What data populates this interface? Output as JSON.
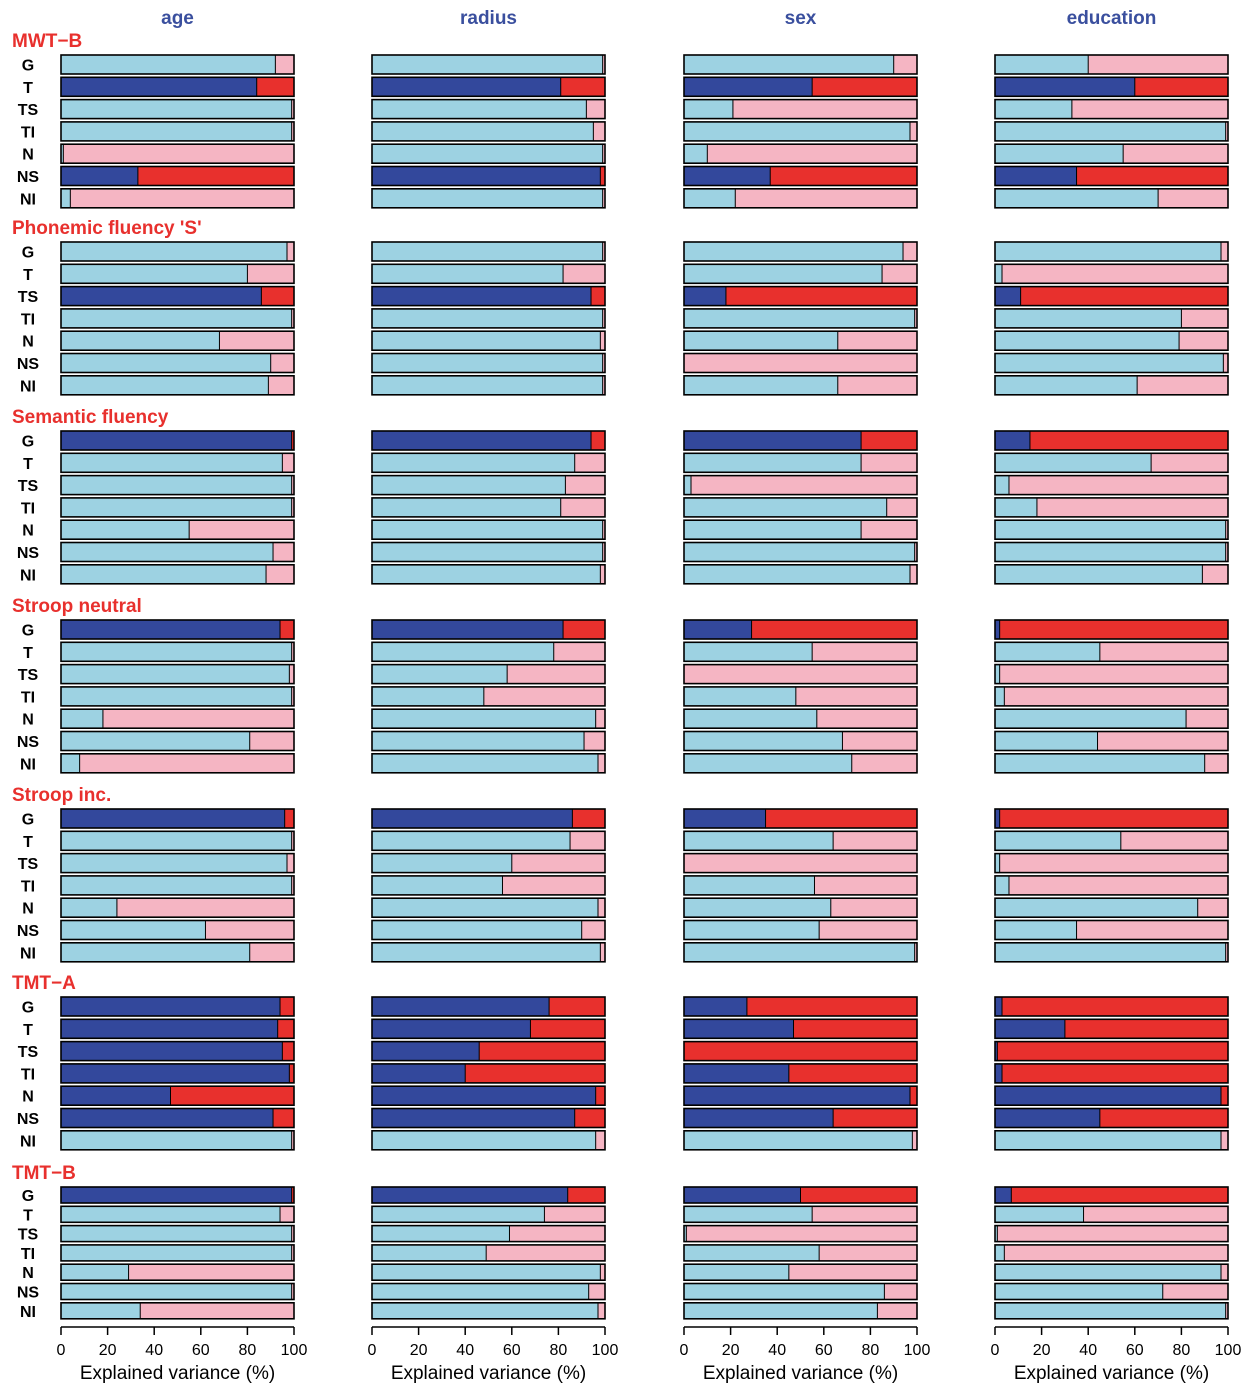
{
  "figure": {
    "columns": [
      "age",
      "radius",
      "sex",
      "education"
    ],
    "row_labels": [
      "G",
      "T",
      "TS",
      "TI",
      "N",
      "NS",
      "NI"
    ],
    "colors": {
      "column_title": "#3a4f9e",
      "group_title": "#e8302d",
      "significant": "#33489c",
      "significant_rest": "#e8302d",
      "not_significant": "#9dd2e2",
      "not_significant_rest": "#f5b5c3",
      "bar_border": "#000000"
    }
  },
  "chart_data": {
    "type": "bar",
    "orientation": "horizontal",
    "stacked": true,
    "xlabel": "Explained variance (%)",
    "xlim": [
      0,
      100
    ],
    "xticks": [
      0,
      20,
      40,
      60,
      80,
      100
    ],
    "panels": [
      {
        "group": "MWT−B",
        "values": {
          "age": [
            92,
            84,
            99,
            99,
            1,
            33,
            4
          ],
          "radius": [
            99,
            81,
            92,
            95,
            99,
            98,
            99
          ],
          "sex": [
            90,
            55,
            21,
            97,
            10,
            37,
            22
          ],
          "education": [
            40,
            60,
            33,
            99,
            55,
            35,
            70
          ]
        },
        "significant": {
          "age": [
            false,
            true,
            false,
            false,
            false,
            true,
            false
          ],
          "radius": [
            false,
            true,
            false,
            false,
            false,
            true,
            false
          ],
          "sex": [
            false,
            true,
            false,
            false,
            false,
            true,
            false
          ],
          "education": [
            false,
            true,
            false,
            false,
            false,
            true,
            false
          ]
        }
      },
      {
        "group": "Phonemic fluency 'S'",
        "values": {
          "age": [
            97,
            80,
            86,
            99,
            68,
            90,
            89
          ],
          "radius": [
            99,
            82,
            94,
            99,
            98,
            99,
            99
          ],
          "sex": [
            94,
            85,
            18,
            99,
            66,
            0,
            66
          ],
          "education": [
            97,
            3,
            11,
            80,
            79,
            98,
            61
          ]
        },
        "significant": {
          "age": [
            false,
            false,
            true,
            false,
            false,
            false,
            false
          ],
          "radius": [
            false,
            false,
            true,
            false,
            false,
            false,
            false
          ],
          "sex": [
            false,
            false,
            true,
            false,
            false,
            false,
            false
          ],
          "education": [
            false,
            false,
            true,
            false,
            false,
            false,
            false
          ]
        }
      },
      {
        "group": "Semantic fluency",
        "values": {
          "age": [
            99,
            95,
            99,
            99,
            55,
            91,
            88
          ],
          "radius": [
            94,
            87,
            83,
            81,
            99,
            99,
            98
          ],
          "sex": [
            76,
            76,
            3,
            87,
            76,
            99,
            97
          ],
          "education": [
            15,
            67,
            6,
            18,
            99,
            99,
            89
          ]
        },
        "significant": {
          "age": [
            true,
            false,
            false,
            false,
            false,
            false,
            false
          ],
          "radius": [
            true,
            false,
            false,
            false,
            false,
            false,
            false
          ],
          "sex": [
            true,
            false,
            false,
            false,
            false,
            false,
            false
          ],
          "education": [
            true,
            false,
            false,
            false,
            false,
            false,
            false
          ]
        }
      },
      {
        "group": "Stroop neutral",
        "values": {
          "age": [
            94,
            99,
            98,
            99,
            18,
            81,
            8
          ],
          "radius": [
            82,
            78,
            58,
            48,
            96,
            91,
            97
          ],
          "sex": [
            29,
            55,
            0,
            48,
            57,
            68,
            72
          ],
          "education": [
            2,
            45,
            2,
            4,
            82,
            44,
            90
          ]
        },
        "significant": {
          "age": [
            true,
            false,
            false,
            false,
            false,
            false,
            false
          ],
          "radius": [
            true,
            false,
            false,
            false,
            false,
            false,
            false
          ],
          "sex": [
            true,
            false,
            false,
            false,
            false,
            false,
            false
          ],
          "education": [
            true,
            false,
            false,
            false,
            false,
            false,
            false
          ]
        }
      },
      {
        "group": "Stroop inc.",
        "values": {
          "age": [
            96,
            99,
            97,
            99,
            24,
            62,
            81
          ],
          "radius": [
            86,
            85,
            60,
            56,
            97,
            90,
            98
          ],
          "sex": [
            35,
            64,
            0,
            56,
            63,
            58,
            99
          ],
          "education": [
            2,
            54,
            2,
            6,
            87,
            35,
            99
          ]
        },
        "significant": {
          "age": [
            true,
            false,
            false,
            false,
            false,
            false,
            false
          ],
          "radius": [
            true,
            false,
            false,
            false,
            false,
            false,
            false
          ],
          "sex": [
            true,
            false,
            false,
            false,
            false,
            false,
            false
          ],
          "education": [
            true,
            false,
            false,
            false,
            false,
            false,
            false
          ]
        }
      },
      {
        "group": "TMT−A",
        "values": {
          "age": [
            94,
            93,
            95,
            98,
            47,
            91,
            99
          ],
          "radius": [
            76,
            68,
            46,
            40,
            96,
            87,
            96
          ],
          "sex": [
            27,
            47,
            0,
            45,
            97,
            64,
            98
          ],
          "education": [
            3,
            30,
            1,
            3,
            97,
            45,
            97
          ]
        },
        "significant": {
          "age": [
            true,
            true,
            true,
            true,
            true,
            true,
            false
          ],
          "radius": [
            true,
            true,
            true,
            true,
            true,
            true,
            false
          ],
          "sex": [
            true,
            true,
            true,
            true,
            true,
            true,
            false
          ],
          "education": [
            true,
            true,
            true,
            true,
            true,
            true,
            false
          ]
        }
      },
      {
        "group": "TMT−B",
        "values": {
          "age": [
            99,
            94,
            99,
            99,
            29,
            99,
            34
          ],
          "radius": [
            84,
            74,
            59,
            49,
            98,
            93,
            97
          ],
          "sex": [
            50,
            55,
            1,
            58,
            45,
            86,
            83
          ],
          "education": [
            7,
            38,
            1,
            4,
            97,
            72,
            99
          ]
        },
        "significant": {
          "age": [
            true,
            false,
            false,
            false,
            false,
            false,
            false
          ],
          "radius": [
            true,
            false,
            false,
            false,
            false,
            false,
            false
          ],
          "sex": [
            true,
            false,
            false,
            false,
            false,
            false,
            false
          ],
          "education": [
            true,
            false,
            false,
            false,
            false,
            false,
            false
          ]
        }
      }
    ]
  }
}
